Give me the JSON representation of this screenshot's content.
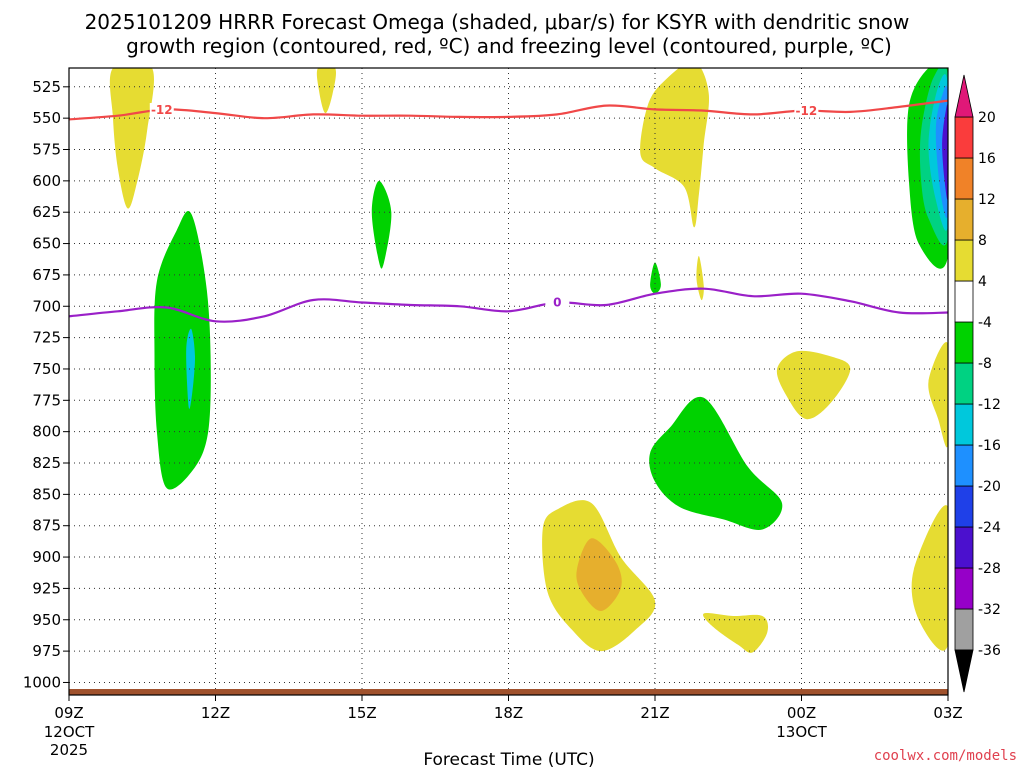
{
  "chart_data": {
    "type": "contour",
    "title_line1": "2025101209 HRRR Forecast Omega (shaded, μbar/s) for KSYR with dendritic snow",
    "title_line2": "growth region (contoured, red, ºC) and freezing level (contoured, purple, ºC)",
    "xlabel": "Forecast Time (UTC)",
    "credit": "coolwx.com/models",
    "x_ticks": [
      {
        "hour": 0,
        "label": "09Z",
        "date": "12OCT",
        "year": "2025"
      },
      {
        "hour": 3,
        "label": "12Z"
      },
      {
        "hour": 6,
        "label": "15Z"
      },
      {
        "hour": 9,
        "label": "18Z"
      },
      {
        "hour": 12,
        "label": "21Z"
      },
      {
        "hour": 15,
        "label": "00Z",
        "date": "13OCT"
      },
      {
        "hour": 18,
        "label": "03Z"
      }
    ],
    "y_levels": [
      525,
      550,
      575,
      600,
      625,
      650,
      675,
      700,
      725,
      750,
      775,
      800,
      825,
      850,
      875,
      900,
      925,
      950,
      975,
      1000
    ],
    "ylim": [
      510,
      1010
    ],
    "xlim": [
      0,
      18
    ],
    "colorbar": {
      "levels": [
        -36,
        -32,
        -28,
        -24,
        -20,
        -16,
        -12,
        -8,
        -4,
        4,
        8,
        12,
        16,
        20
      ],
      "colors": [
        "#a0a0a0",
        "#9600c8",
        "#4b10ce",
        "#1f40e8",
        "#1e90ff",
        "#00c8dc",
        "#00d282",
        "#00d200",
        "#ffffff",
        "#e6dc32",
        "#e6af2d",
        "#f08228",
        "#fa3c3c",
        "#e01878"
      ],
      "under_color": "#000000",
      "over_color": "#e01878"
    },
    "contours": [
      {
        "name": "dendritic growth -12C",
        "value": "-12",
        "color": "#f04848",
        "points": [
          [
            0,
            551
          ],
          [
            1,
            548
          ],
          [
            2,
            543
          ],
          [
            3,
            546
          ],
          [
            4,
            550
          ],
          [
            5,
            547
          ],
          [
            6,
            548
          ],
          [
            7,
            548
          ],
          [
            8,
            549
          ],
          [
            9,
            549
          ],
          [
            10,
            547
          ],
          [
            11,
            540
          ],
          [
            12,
            543
          ],
          [
            13,
            544
          ],
          [
            14,
            547
          ],
          [
            15,
            544
          ],
          [
            16,
            545
          ],
          [
            17,
            541
          ],
          [
            18,
            536
          ]
        ],
        "label_positions": [
          1.9,
          15.1
        ]
      },
      {
        "name": "freezing level 0C",
        "value": "0",
        "color": "#9a20c8",
        "points": [
          [
            0,
            708
          ],
          [
            1,
            704
          ],
          [
            2,
            701
          ],
          [
            3,
            712
          ],
          [
            4,
            708
          ],
          [
            5,
            695
          ],
          [
            6,
            697
          ],
          [
            7,
            699
          ],
          [
            8,
            700
          ],
          [
            9,
            704
          ],
          [
            10,
            697
          ],
          [
            11,
            699
          ],
          [
            12,
            690
          ],
          [
            13,
            686
          ],
          [
            14,
            692
          ],
          [
            15,
            690
          ],
          [
            16,
            696
          ],
          [
            17,
            705
          ],
          [
            18,
            705
          ]
        ],
        "label_positions": [
          10.0
        ]
      }
    ],
    "shaded_regions": [
      {
        "value": 6,
        "points": [
          [
            0.9,
            510
          ],
          [
            1.7,
            510
          ],
          [
            1.6,
            560
          ],
          [
            1.4,
            600
          ],
          [
            1.2,
            622
          ],
          [
            1.0,
            590
          ],
          [
            0.9,
            550
          ]
        ]
      },
      {
        "value": 6,
        "points": [
          [
            5.1,
            510
          ],
          [
            5.45,
            510
          ],
          [
            5.4,
            530
          ],
          [
            5.25,
            546
          ],
          [
            5.12,
            528
          ]
        ]
      },
      {
        "value": 6,
        "points": [
          [
            11.7,
            578
          ],
          [
            11.85,
            540
          ],
          [
            12.2,
            520
          ],
          [
            12.8,
            505
          ],
          [
            13.1,
            530
          ],
          [
            13.0,
            570
          ],
          [
            12.9,
            610
          ],
          [
            12.8,
            637
          ],
          [
            12.6,
            605
          ],
          [
            12.0,
            590
          ]
        ]
      },
      {
        "value": 6,
        "points": [
          [
            12.9,
            660
          ],
          [
            13.0,
            684
          ],
          [
            12.95,
            695
          ],
          [
            12.85,
            678
          ]
        ]
      },
      {
        "value": 6,
        "points": [
          [
            14.5,
            750
          ],
          [
            14.9,
            736
          ],
          [
            15.6,
            740
          ],
          [
            16.0,
            750
          ],
          [
            15.6,
            777
          ],
          [
            15.1,
            790
          ],
          [
            14.7,
            772
          ]
        ]
      },
      {
        "value": 6,
        "points": [
          [
            9.7,
            878
          ],
          [
            10.0,
            862
          ],
          [
            10.7,
            857
          ],
          [
            11.3,
            900
          ],
          [
            12.0,
            935
          ],
          [
            11.6,
            958
          ],
          [
            10.9,
            975
          ],
          [
            10.3,
            958
          ],
          [
            9.8,
            928
          ]
        ]
      },
      {
        "value": 10,
        "points": [
          [
            10.4,
            910
          ],
          [
            10.7,
            885
          ],
          [
            11.2,
            904
          ],
          [
            11.3,
            925
          ],
          [
            10.9,
            943
          ],
          [
            10.5,
            928
          ]
        ]
      },
      {
        "value": 6,
        "points": [
          [
            13.0,
            945
          ],
          [
            13.6,
            947
          ],
          [
            14.2,
            947
          ],
          [
            14.3,
            960
          ],
          [
            14.0,
            976
          ],
          [
            13.7,
            970
          ],
          [
            13.2,
            956
          ]
        ]
      },
      {
        "value": 6,
        "points": [
          [
            17.6,
            760
          ],
          [
            18.0,
            730
          ],
          [
            18.0,
            810
          ],
          [
            17.8,
            790
          ]
        ]
      },
      {
        "value": 6,
        "points": [
          [
            17.3,
            910
          ],
          [
            18.0,
            860
          ],
          [
            18.0,
            970
          ],
          [
            17.4,
            950
          ]
        ]
      },
      {
        "value": -6,
        "points": [
          [
            1.8,
            680
          ],
          [
            2.2,
            640
          ],
          [
            2.5,
            626
          ],
          [
            2.8,
            680
          ],
          [
            2.9,
            740
          ],
          [
            2.85,
            800
          ],
          [
            2.55,
            830
          ],
          [
            2.0,
            845
          ],
          [
            1.8,
            800
          ],
          [
            1.75,
            740
          ]
        ]
      },
      {
        "value": -14,
        "points": [
          [
            2.4,
            735
          ],
          [
            2.5,
            718
          ],
          [
            2.58,
            740
          ],
          [
            2.52,
            770
          ],
          [
            2.45,
            780
          ]
        ]
      },
      {
        "value": -6,
        "points": [
          [
            6.2,
            625
          ],
          [
            6.35,
            600
          ],
          [
            6.6,
            625
          ],
          [
            6.45,
            665
          ],
          [
            6.35,
            665
          ]
        ]
      },
      {
        "value": -6,
        "points": [
          [
            11.9,
            683
          ],
          [
            12.0,
            665
          ],
          [
            12.12,
            683
          ],
          [
            12.0,
            690
          ]
        ]
      },
      {
        "value": -6,
        "points": [
          [
            11.9,
            817
          ],
          [
            12.3,
            797
          ],
          [
            13.0,
            773
          ],
          [
            13.9,
            828
          ],
          [
            14.6,
            857
          ],
          [
            14.2,
            878
          ],
          [
            13.4,
            870
          ],
          [
            12.5,
            860
          ],
          [
            12.0,
            840
          ]
        ]
      },
      {
        "value": -6,
        "points": [
          [
            17.2,
            540
          ],
          [
            17.6,
            510
          ],
          [
            18.0,
            510
          ],
          [
            18.0,
            660
          ],
          [
            17.4,
            650
          ],
          [
            17.2,
            600
          ]
        ]
      },
      {
        "value": -10,
        "points": [
          [
            17.45,
            560
          ],
          [
            17.7,
            518
          ],
          [
            18.0,
            518
          ],
          [
            18.0,
            645
          ],
          [
            17.6,
            630
          ],
          [
            17.45,
            600
          ]
        ]
      },
      {
        "value": -14,
        "points": [
          [
            17.6,
            570
          ],
          [
            17.8,
            525
          ],
          [
            18.0,
            525
          ],
          [
            18.0,
            635
          ],
          [
            17.75,
            615
          ]
        ]
      },
      {
        "value": -18,
        "points": [
          [
            17.75,
            560
          ],
          [
            17.88,
            532
          ],
          [
            18.0,
            532
          ],
          [
            18.0,
            625
          ],
          [
            17.85,
            610
          ]
        ]
      },
      {
        "value": -26,
        "points": [
          [
            17.88,
            570
          ],
          [
            17.95,
            545
          ],
          [
            18.0,
            545
          ],
          [
            18.0,
            612
          ],
          [
            17.93,
            600
          ]
        ]
      }
    ]
  }
}
